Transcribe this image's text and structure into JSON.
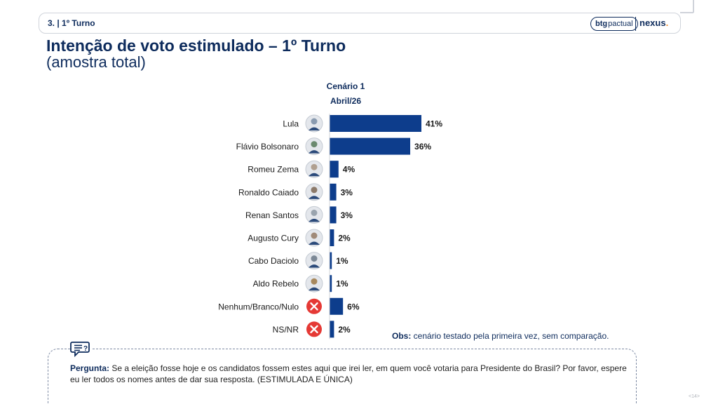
{
  "header": {
    "section": "3. | 1º Turno",
    "logo_btg_bold": "btg",
    "logo_btg_rest": "pactual",
    "logo_nexus": "nexus",
    "logo_nexus_dot": "."
  },
  "title": "Intenção de voto estimulado – 1º Turno",
  "subtitle": "(amostra total)",
  "scenario": {
    "line1": "Cenário 1",
    "line2": "Abril/26"
  },
  "obs": {
    "label": "Obs:",
    "text": " cenário testado pela primeira vez, sem comparação."
  },
  "question": {
    "label": "Pergunta:",
    "text": " Se a eleição fosse hoje e os candidatos fossem estes aqui que irei ler, em quem você votaria para Presidente do Brasil? Por favor, espere eu ler todos os nomes antes de dar sua resposta. (ESTIMULADA E ÚNICA)"
  },
  "page_number": "<14>",
  "colors": {
    "bar": "#0d3d8c",
    "text_dark": "#0d2b5c",
    "x_icon": "#e53935"
  },
  "chart_data": {
    "type": "bar",
    "orientation": "horizontal",
    "categories": [
      "Lula",
      "Flávio Bolsonaro",
      "Romeu Zema",
      "Ronaldo Caiado",
      "Renan Santos",
      "Augusto Cury",
      "Cabo Daciolo",
      "Aldo Rebelo",
      "Nenhum/Branco/Nulo",
      "NS/NR"
    ],
    "values": [
      41,
      36,
      4,
      3,
      3,
      2,
      1,
      1,
      6,
      2
    ],
    "labels": [
      "41%",
      "36%",
      "4%",
      "3%",
      "3%",
      "2%",
      "1%",
      "1%",
      "6%",
      "2%"
    ],
    "icons": [
      "avatar-icon",
      "avatar-icon",
      "avatar-icon",
      "avatar-icon",
      "avatar-icon",
      "avatar-icon",
      "avatar-icon",
      "avatar-icon",
      "x-icon",
      "x-icon"
    ],
    "title": "Cenário 1",
    "subtitle": "Abril/26",
    "xlim": [
      0,
      41
    ],
    "grid": false,
    "legend": "none"
  }
}
